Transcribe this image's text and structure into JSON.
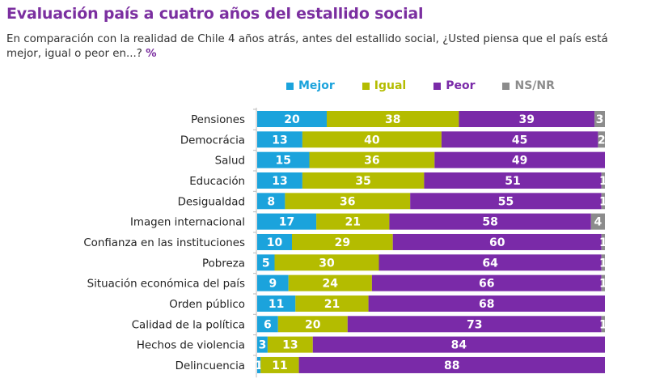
{
  "title": "Evaluación país a cuatro años del estallido social",
  "subtitle": "En comparación con la realidad de Chile 4 años atrás, antes del estallido social, ¿Usted piensa que el país está mejor, igual o peor en...?",
  "unit": "%",
  "chart_data": {
    "type": "bar",
    "orientation": "horizontal",
    "stacked": true,
    "legend_position": "top",
    "grid": false,
    "xlim": [
      0,
      100
    ],
    "categories": [
      "Pensiones",
      "Democrácia",
      "Salud",
      "Educación",
      "Desigualdad",
      "Imagen internacional",
      "Confianza en las instituciones",
      "Pobreza",
      "Situación económica del país",
      "Orden público",
      "Calidad de la política",
      "Hechos de violencia",
      "Delincuencia"
    ],
    "series": [
      {
        "name": "Mejor",
        "color": "#1ba3dc",
        "values": [
          20,
          13,
          15,
          13,
          8,
          17,
          10,
          5,
          9,
          11,
          6,
          3,
          1
        ]
      },
      {
        "name": "Igual",
        "color": "#b4bc00",
        "values": [
          38,
          40,
          36,
          35,
          36,
          21,
          29,
          30,
          24,
          21,
          20,
          13,
          11
        ]
      },
      {
        "name": "Peor",
        "color": "#7a2aa8",
        "values": [
          39,
          45,
          49,
          51,
          55,
          58,
          60,
          64,
          66,
          68,
          73,
          84,
          88
        ]
      },
      {
        "name": "NS/NR",
        "color": "#8c8c8c",
        "values": [
          3,
          2,
          0,
          1,
          1,
          4,
          1,
          1,
          1,
          0,
          1,
          0,
          0
        ]
      }
    ]
  }
}
